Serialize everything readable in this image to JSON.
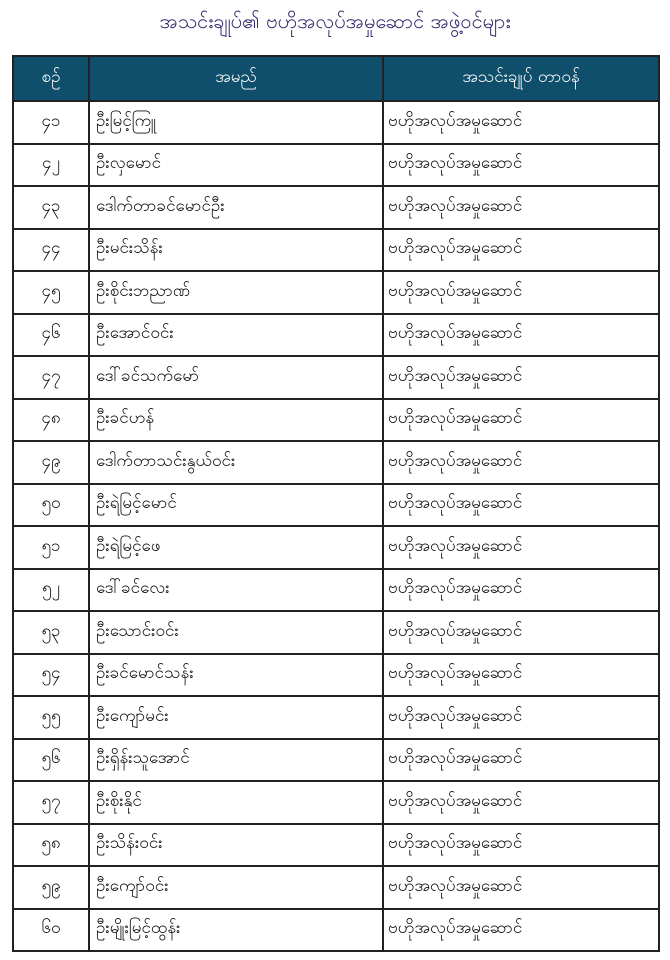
{
  "title": "အသင်းချုပ်၏ ဗဟိုအလုပ်အမှုဆောင် အဖွဲ့ဝင်များ",
  "colors": {
    "header_bg": "#0f4f6c",
    "title": "#3a2a6e"
  },
  "table": {
    "headers": [
      "စဉ်",
      "အမည်",
      "အသင်းချုပ် တာဝန်"
    ],
    "rows": [
      {
        "no": "၄၁",
        "name": "ဦးမြင့်ကြူ",
        "role": "ဗဟိုအလုပ်အမှုဆောင်"
      },
      {
        "no": "၄၂",
        "name": "ဦးလှမောင်",
        "role": "ဗဟိုအလုပ်အမှုဆောင်"
      },
      {
        "no": "၄၃",
        "name": "ဒေါက်တာခင်မောင်ဦး",
        "role": "ဗဟိုအလုပ်အမှုဆောင်"
      },
      {
        "no": "၄၄",
        "name": "ဦးမင်းသိန်း",
        "role": "ဗဟိုအလုပ်အမှုဆောင်"
      },
      {
        "no": "၄၅",
        "name": "ဦးစိုင်းဘညာဏ်",
        "role": "ဗဟိုအလုပ်အမှုဆောင်"
      },
      {
        "no": "၄၆",
        "name": "ဦးအောင်ဝင်း",
        "role": "ဗဟိုအလုပ်အမှုဆောင်"
      },
      {
        "no": "၄၇",
        "name": "ဒေါ်ခင်သက်မော်",
        "role": "ဗဟိုအလုပ်အမှုဆောင်"
      },
      {
        "no": "၄၈",
        "name": "ဦးခင်ဟန်",
        "role": "ဗဟိုအလုပ်အမှုဆောင်"
      },
      {
        "no": "၄၉",
        "name": "ဒေါက်တာသင်းနွယ်ဝင်း",
        "role": "ဗဟိုအလုပ်အမှုဆောင်"
      },
      {
        "no": "၅၀",
        "name": "ဦးရဲမြင့်မောင်",
        "role": "ဗဟိုအလုပ်အမှုဆောင်"
      },
      {
        "no": "၅၁",
        "name": "ဦးရဲမြင့်ဖေ",
        "role": "ဗဟိုအလုပ်အမှုဆောင်"
      },
      {
        "no": "၅၂",
        "name": "ဒေါ်ခင်လေး",
        "role": "ဗဟိုအလုပ်အမှုဆောင်"
      },
      {
        "no": "၅၃",
        "name": "ဦးသောင်းဝင်း",
        "role": "ဗဟိုအလုပ်အမှုဆောင်"
      },
      {
        "no": "၅၄",
        "name": "ဦးခင်မောင်သန်း",
        "role": "ဗဟိုအလုပ်အမှုဆောင်"
      },
      {
        "no": "၅၅",
        "name": "ဦးကျော်မင်း",
        "role": "ဗဟိုအလုပ်အမှုဆောင်"
      },
      {
        "no": "၅၆",
        "name": "ဦးရှိန်းသူအောင်",
        "role": "ဗဟိုအလုပ်အမှုဆောင်"
      },
      {
        "no": "၅၇",
        "name": "ဦးစိုးနိုင်",
        "role": "ဗဟိုအလုပ်အမှုဆောင်"
      },
      {
        "no": "၅၈",
        "name": "ဦးသိန်းဝင်း",
        "role": "ဗဟိုအလုပ်အမှုဆောင်"
      },
      {
        "no": "၅၉",
        "name": "ဦးကျော်ဝင်း",
        "role": "ဗဟိုအလုပ်အမှုဆောင်"
      },
      {
        "no": "၆၀",
        "name": "ဦးမျိုးမြင့်ထွန်း",
        "role": "ဗဟိုအလုပ်အမှုဆောင်"
      }
    ]
  }
}
